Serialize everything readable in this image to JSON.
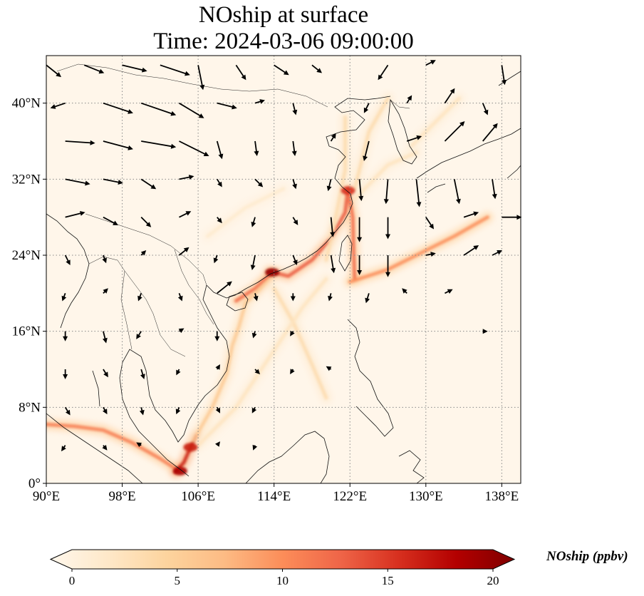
{
  "title": {
    "line1": "NOship at surface",
    "line2": "Time: 2024-03-06 09:00:00"
  },
  "chart_data": {
    "type": "heatmap",
    "variable": "NOship",
    "level": "surface",
    "time": "2024-03-06 09:00:00",
    "x_range_lon": [
      90,
      140
    ],
    "y_range_lat": [
      0,
      45
    ],
    "xticks": [
      90,
      98,
      106,
      114,
      122,
      130,
      138
    ],
    "xtick_labels": [
      "90°E",
      "98°E",
      "106°E",
      "114°E",
      "122°E",
      "130°E",
      "138°E"
    ],
    "yticks": [
      0,
      8,
      16,
      24,
      32,
      40
    ],
    "ytick_labels": [
      "0°",
      "8°N",
      "16°N",
      "24°N",
      "32°N",
      "40°N"
    ],
    "grid": true,
    "colorbar": {
      "label": "NOship (ppbv)",
      "range": [
        0,
        20
      ],
      "ticks": [
        0,
        5,
        10,
        15,
        20
      ],
      "tick_labels": [
        "0",
        "5",
        "10",
        "15",
        "20"
      ],
      "extend": "both",
      "colormap": "OrRd",
      "colors": [
        "#fff7ec",
        "#fee8c8",
        "#fdd49e",
        "#fdbb84",
        "#fc8d59",
        "#ef6548",
        "#d7301f",
        "#b30000",
        "#7f0000"
      ]
    },
    "shipping_lanes": [
      {
        "points": [
          [
            90,
            6.2
          ],
          [
            93,
            6.0
          ],
          [
            96,
            5.6
          ],
          [
            99,
            4.3
          ],
          [
            102,
            2.6
          ],
          [
            104,
            1.3
          ]
        ],
        "level": 11
      },
      {
        "points": [
          [
            103.6,
            1.2
          ],
          [
            104.5,
            2.2
          ],
          [
            105.2,
            3.8
          ],
          [
            105.8,
            5.0
          ]
        ],
        "level": 16
      },
      {
        "points": [
          [
            105.5,
            4.5
          ],
          [
            107.5,
            8.0
          ],
          [
            109.0,
            11.5
          ],
          [
            109.6,
            14.5
          ],
          [
            110.3,
            16.5
          ],
          [
            111.0,
            19.0
          ],
          [
            112.5,
            20.5
          ],
          [
            113.8,
            22.0
          ]
        ],
        "level": 6
      },
      {
        "points": [
          [
            110.0,
            19.2
          ],
          [
            112.0,
            20.5
          ],
          [
            113.8,
            22.2
          ]
        ],
        "level": 12
      },
      {
        "points": [
          [
            113.5,
            22.3
          ],
          [
            115.5,
            21.8
          ],
          [
            118.0,
            23.5
          ],
          [
            120.0,
            25.8
          ],
          [
            121.5,
            28.5
          ],
          [
            121.8,
            31.0
          ]
        ],
        "level": 13
      },
      {
        "points": [
          [
            121.8,
            30.8
          ],
          [
            122.3,
            28.0
          ],
          [
            122.4,
            24.0
          ],
          [
            122.5,
            21.5
          ]
        ],
        "level": 12
      },
      {
        "points": [
          [
            122.0,
            21.2
          ],
          [
            126.0,
            22.5
          ],
          [
            130.0,
            24.5
          ],
          [
            133.0,
            26.0
          ],
          [
            136.5,
            28.0
          ]
        ],
        "level": 10
      },
      {
        "points": [
          [
            114.0,
            20.5
          ],
          [
            116.0,
            17.0
          ],
          [
            118.0,
            12.5
          ],
          [
            119.5,
            9.0
          ]
        ],
        "level": 4
      },
      {
        "points": [
          [
            106.0,
            4.0
          ],
          [
            110.0,
            8.0
          ],
          [
            114.0,
            14.0
          ],
          [
            117.0,
            18.5
          ],
          [
            119.5,
            21.5
          ]
        ],
        "level": 3
      },
      {
        "points": [
          [
            119.5,
            23.5
          ],
          [
            120.5,
            28.0
          ],
          [
            121.5,
            33.0
          ],
          [
            121.5,
            38.5
          ]
        ],
        "level": 4
      },
      {
        "points": [
          [
            122.5,
            31.0
          ],
          [
            124.0,
            37.0
          ],
          [
            126.0,
            40.5
          ]
        ],
        "level": 4
      },
      {
        "points": [
          [
            122.6,
            30.0
          ],
          [
            126.0,
            33.5
          ],
          [
            129.0,
            34.8
          ]
        ],
        "level": 3
      },
      {
        "points": [
          [
            128.5,
            35.5
          ],
          [
            131.0,
            38.0
          ],
          [
            133.5,
            40.5
          ]
        ],
        "level": 3
      },
      {
        "points": [
          [
            107.0,
            26.0
          ],
          [
            111.0,
            29.0
          ],
          [
            115.0,
            31.0
          ]
        ],
        "level": 2
      }
    ],
    "hotspots": [
      {
        "lon": 113.8,
        "lat": 22.2,
        "level": 19
      },
      {
        "lon": 104.1,
        "lat": 1.3,
        "level": 18
      },
      {
        "lon": 121.8,
        "lat": 30.8,
        "level": 15
      },
      {
        "lon": 105.2,
        "lat": 3.8,
        "level": 16
      }
    ],
    "wind_vectors": [
      {
        "lon": 90,
        "lat": 44,
        "u": 1.5,
        "v": -1.2
      },
      {
        "lon": 94,
        "lat": 44,
        "u": 2.0,
        "v": -0.8
      },
      {
        "lon": 98,
        "lat": 44,
        "u": 2.5,
        "v": -0.6
      },
      {
        "lon": 102,
        "lat": 44,
        "u": 3.0,
        "v": -1.0
      },
      {
        "lon": 106,
        "lat": 44,
        "u": 0.5,
        "v": -2.5
      },
      {
        "lon": 110,
        "lat": 44,
        "u": 1.0,
        "v": -1.5
      },
      {
        "lon": 114,
        "lat": 44,
        "u": 1.5,
        "v": -1.0
      },
      {
        "lon": 118,
        "lat": 44,
        "u": 1.0,
        "v": -0.8
      },
      {
        "lon": 126,
        "lat": 44,
        "u": -1.0,
        "v": -1.5
      },
      {
        "lon": 130,
        "lat": 44,
        "u": 1.0,
        "v": 0.5
      },
      {
        "lon": 138,
        "lat": 44,
        "u": 0.3,
        "v": -2.0
      },
      {
        "lon": 92,
        "lat": 40,
        "u": -1.5,
        "v": -0.5
      },
      {
        "lon": 96,
        "lat": 40,
        "u": 3.0,
        "v": -1.0
      },
      {
        "lon": 100,
        "lat": 40,
        "u": 3.5,
        "v": -1.2
      },
      {
        "lon": 104,
        "lat": 40,
        "u": 2.5,
        "v": -1.5
      },
      {
        "lon": 108,
        "lat": 40,
        "u": 2.0,
        "v": -0.5
      },
      {
        "lon": 112,
        "lat": 40,
        "u": 1.0,
        "v": 0.3
      },
      {
        "lon": 116,
        "lat": 40,
        "u": 0.3,
        "v": -1.2
      },
      {
        "lon": 124,
        "lat": 40,
        "u": -0.5,
        "v": -1.0
      },
      {
        "lon": 128,
        "lat": 40,
        "u": 0.5,
        "v": 0.8
      },
      {
        "lon": 132,
        "lat": 40,
        "u": 1.0,
        "v": 1.5
      },
      {
        "lon": 136,
        "lat": 40,
        "u": 0.5,
        "v": -1.2
      },
      {
        "lon": 92,
        "lat": 36,
        "u": 3.0,
        "v": -0.2
      },
      {
        "lon": 96,
        "lat": 36,
        "u": 3.0,
        "v": -0.8
      },
      {
        "lon": 100,
        "lat": 36,
        "u": 3.5,
        "v": -0.6
      },
      {
        "lon": 104,
        "lat": 36,
        "u": 3.0,
        "v": -1.5
      },
      {
        "lon": 108,
        "lat": 36,
        "u": 0.5,
        "v": -1.8
      },
      {
        "lon": 112,
        "lat": 36,
        "u": 0.2,
        "v": -1.5
      },
      {
        "lon": 116,
        "lat": 36,
        "u": 0.2,
        "v": -1.5
      },
      {
        "lon": 120,
        "lat": 36,
        "u": 0.5,
        "v": 0.8
      },
      {
        "lon": 124,
        "lat": 36,
        "u": -0.5,
        "v": -2.0
      },
      {
        "lon": 128,
        "lat": 36,
        "u": 1.5,
        "v": 0.5
      },
      {
        "lon": 132,
        "lat": 36,
        "u": 2.0,
        "v": 2.0
      },
      {
        "lon": 136,
        "lat": 36,
        "u": 1.5,
        "v": 1.8
      },
      {
        "lon": 92,
        "lat": 32,
        "u": 2.5,
        "v": -0.5
      },
      {
        "lon": 96,
        "lat": 32,
        "u": 2.0,
        "v": -0.4
      },
      {
        "lon": 100,
        "lat": 32,
        "u": 1.5,
        "v": -1.0
      },
      {
        "lon": 104,
        "lat": 32,
        "u": 1.5,
        "v": 0.3
      },
      {
        "lon": 108,
        "lat": 32,
        "u": 0.5,
        "v": -0.8
      },
      {
        "lon": 112,
        "lat": 32,
        "u": 0.8,
        "v": -0.8
      },
      {
        "lon": 116,
        "lat": 32,
        "u": 0.3,
        "v": -1.0
      },
      {
        "lon": 120,
        "lat": 32,
        "u": -0.3,
        "v": -1.2
      },
      {
        "lon": 123,
        "lat": 32,
        "u": 0.2,
        "v": -2.2
      },
      {
        "lon": 126,
        "lat": 32,
        "u": -0.2,
        "v": -2.5
      },
      {
        "lon": 129,
        "lat": 32,
        "u": 0.3,
        "v": -2.8
      },
      {
        "lon": 133,
        "lat": 32,
        "u": 0.5,
        "v": -2.5
      },
      {
        "lon": 137,
        "lat": 32,
        "u": 0.3,
        "v": -2.0
      },
      {
        "lon": 92,
        "lat": 28,
        "u": 2.0,
        "v": 0.5
      },
      {
        "lon": 96,
        "lat": 28,
        "u": 1.5,
        "v": -0.8
      },
      {
        "lon": 100,
        "lat": 28,
        "u": 1.0,
        "v": -1.0
      },
      {
        "lon": 104,
        "lat": 28,
        "u": 1.2,
        "v": 0.6
      },
      {
        "lon": 108,
        "lat": 28,
        "u": 0.5,
        "v": -0.6
      },
      {
        "lon": 112,
        "lat": 28,
        "u": -0.3,
        "v": -1.0
      },
      {
        "lon": 116,
        "lat": 28,
        "u": 0.5,
        "v": -0.8
      },
      {
        "lon": 120,
        "lat": 28,
        "u": 0.2,
        "v": -2.0
      },
      {
        "lon": 123,
        "lat": 28,
        "u": 0.0,
        "v": -2.5
      },
      {
        "lon": 126,
        "lat": 28,
        "u": 0.0,
        "v": -2.2
      },
      {
        "lon": 130,
        "lat": 28,
        "u": 0.8,
        "v": -1.2
      },
      {
        "lon": 134,
        "lat": 28,
        "u": 1.5,
        "v": 0.5
      },
      {
        "lon": 138,
        "lat": 28,
        "u": 2.0,
        "v": 0.0
      },
      {
        "lon": 92,
        "lat": 24,
        "u": 0.5,
        "v": -1.0
      },
      {
        "lon": 96,
        "lat": 24,
        "u": 0.3,
        "v": -0.8
      },
      {
        "lon": 100,
        "lat": 24,
        "u": 0.5,
        "v": 0.5
      },
      {
        "lon": 104,
        "lat": 24,
        "u": 1.0,
        "v": 0.8
      },
      {
        "lon": 108,
        "lat": 24,
        "u": -0.3,
        "v": -0.8
      },
      {
        "lon": 112,
        "lat": 24,
        "u": -0.3,
        "v": -1.5
      },
      {
        "lon": 116,
        "lat": 24,
        "u": 0.4,
        "v": -1.0
      },
      {
        "lon": 120,
        "lat": 24,
        "u": 0.3,
        "v": -1.8
      },
      {
        "lon": 123,
        "lat": 24,
        "u": 0.0,
        "v": -2.0
      },
      {
        "lon": 126,
        "lat": 24,
        "u": 0.0,
        "v": -2.2
      },
      {
        "lon": 130,
        "lat": 24,
        "u": 1.0,
        "v": 0.2
      },
      {
        "lon": 134,
        "lat": 24,
        "u": 1.5,
        "v": 1.0
      },
      {
        "lon": 137,
        "lat": 24,
        "u": 1.0,
        "v": 0.5
      },
      {
        "lon": 92,
        "lat": 20,
        "u": -0.3,
        "v": -0.8
      },
      {
        "lon": 96,
        "lat": 20,
        "u": 0.5,
        "v": 0.5
      },
      {
        "lon": 100,
        "lat": 20,
        "u": -0.3,
        "v": -0.8
      },
      {
        "lon": 104,
        "lat": 20,
        "u": 0.3,
        "v": -0.8
      },
      {
        "lon": 108,
        "lat": 20,
        "u": 1.5,
        "v": 1.2
      },
      {
        "lon": 112,
        "lat": 20,
        "u": 0.2,
        "v": -0.8
      },
      {
        "lon": 116,
        "lat": 20,
        "u": 0.0,
        "v": -0.8
      },
      {
        "lon": 120,
        "lat": 20,
        "u": -0.2,
        "v": -0.8
      },
      {
        "lon": 124,
        "lat": 20,
        "u": -0.3,
        "v": -1.0
      },
      {
        "lon": 128,
        "lat": 20,
        "u": -0.5,
        "v": 0.5
      },
      {
        "lon": 132,
        "lat": 20,
        "u": 0.8,
        "v": 0.4
      },
      {
        "lon": 92,
        "lat": 16,
        "u": 0.0,
        "v": -1.0
      },
      {
        "lon": 96,
        "lat": 16,
        "u": 0.3,
        "v": -1.2
      },
      {
        "lon": 100,
        "lat": 16,
        "u": -0.5,
        "v": -0.8
      },
      {
        "lon": 104,
        "lat": 16,
        "u": 0.5,
        "v": 0.3
      },
      {
        "lon": 108,
        "lat": 16,
        "u": 0.0,
        "v": -1.0
      },
      {
        "lon": 112,
        "lat": 16,
        "u": -0.2,
        "v": -0.7
      },
      {
        "lon": 116,
        "lat": 16,
        "u": -0.3,
        "v": -0.5
      },
      {
        "lon": 136,
        "lat": 16,
        "u": 0.5,
        "v": 0.0
      },
      {
        "lon": 92,
        "lat": 12,
        "u": 0.0,
        "v": -1.0
      },
      {
        "lon": 96,
        "lat": 12,
        "u": 0.5,
        "v": -0.8
      },
      {
        "lon": 100,
        "lat": 12,
        "u": 0.3,
        "v": -1.0
      },
      {
        "lon": 104,
        "lat": 12,
        "u": -0.3,
        "v": -0.6
      },
      {
        "lon": 108,
        "lat": 12,
        "u": 0.3,
        "v": 0.5
      },
      {
        "lon": 112,
        "lat": 12,
        "u": 0.5,
        "v": -0.5
      },
      {
        "lon": 116,
        "lat": 12,
        "u": -0.3,
        "v": -0.5
      },
      {
        "lon": 120,
        "lat": 12,
        "u": -0.5,
        "v": 0.3
      },
      {
        "lon": 92,
        "lat": 8,
        "u": 0.5,
        "v": -0.8
      },
      {
        "lon": 96,
        "lat": 8,
        "u": 0.4,
        "v": -0.7
      },
      {
        "lon": 100,
        "lat": 8,
        "u": 0.2,
        "v": -0.8
      },
      {
        "lon": 104,
        "lat": 8,
        "u": -0.3,
        "v": -0.7
      },
      {
        "lon": 108,
        "lat": 8,
        "u": 0.3,
        "v": -0.6
      },
      {
        "lon": 112,
        "lat": 8,
        "u": -0.3,
        "v": -0.6
      },
      {
        "lon": 92,
        "lat": 4,
        "u": -0.4,
        "v": -0.6
      },
      {
        "lon": 96,
        "lat": 4,
        "u": 0.4,
        "v": -0.5
      },
      {
        "lon": 100,
        "lat": 4,
        "u": -0.5,
        "v": 0.3
      },
      {
        "lon": 108,
        "lat": 4,
        "u": 0.3,
        "v": 0.4
      },
      {
        "lon": 112,
        "lat": 4,
        "u": -0.2,
        "v": -0.5
      }
    ]
  }
}
